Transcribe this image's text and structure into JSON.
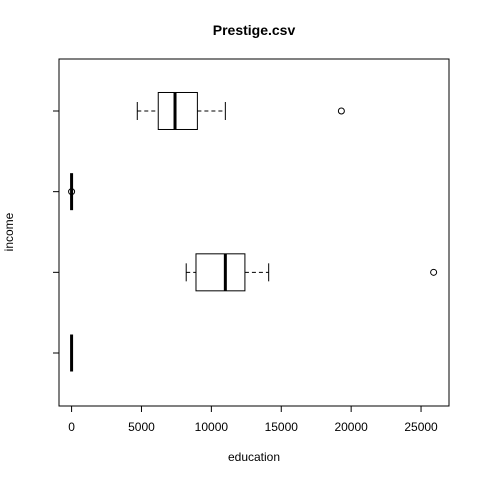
{
  "chart_data": {
    "type": "boxplot",
    "orientation": "horizontal",
    "title": "Prestige.csv",
    "xlabel": "education",
    "ylabel": "income",
    "xlim": [
      -900,
      27000
    ],
    "x_ticks": [
      0,
      5000,
      10000,
      15000,
      20000,
      25000
    ],
    "x_tick_labels": [
      "0",
      "5000",
      "10000",
      "15000",
      "20000",
      "25000"
    ],
    "y_tick_count": 4,
    "grid": false,
    "legend": "none",
    "boxes": [
      {
        "min": 0,
        "q1": 0,
        "median": 0,
        "q3": 0,
        "max": 0,
        "outliers": []
      },
      {
        "min": 8200,
        "q1": 8900,
        "median": 11000,
        "q3": 12400,
        "max": 14100,
        "outliers": [
          25900
        ]
      },
      {
        "min": 0,
        "q1": 0,
        "median": 0,
        "q3": 0,
        "max": 0,
        "outliers": [
          0
        ]
      },
      {
        "min": 4700,
        "q1": 6200,
        "median": 7400,
        "q3": 9000,
        "max": 11000,
        "outliers": [
          19300
        ]
      }
    ]
  }
}
